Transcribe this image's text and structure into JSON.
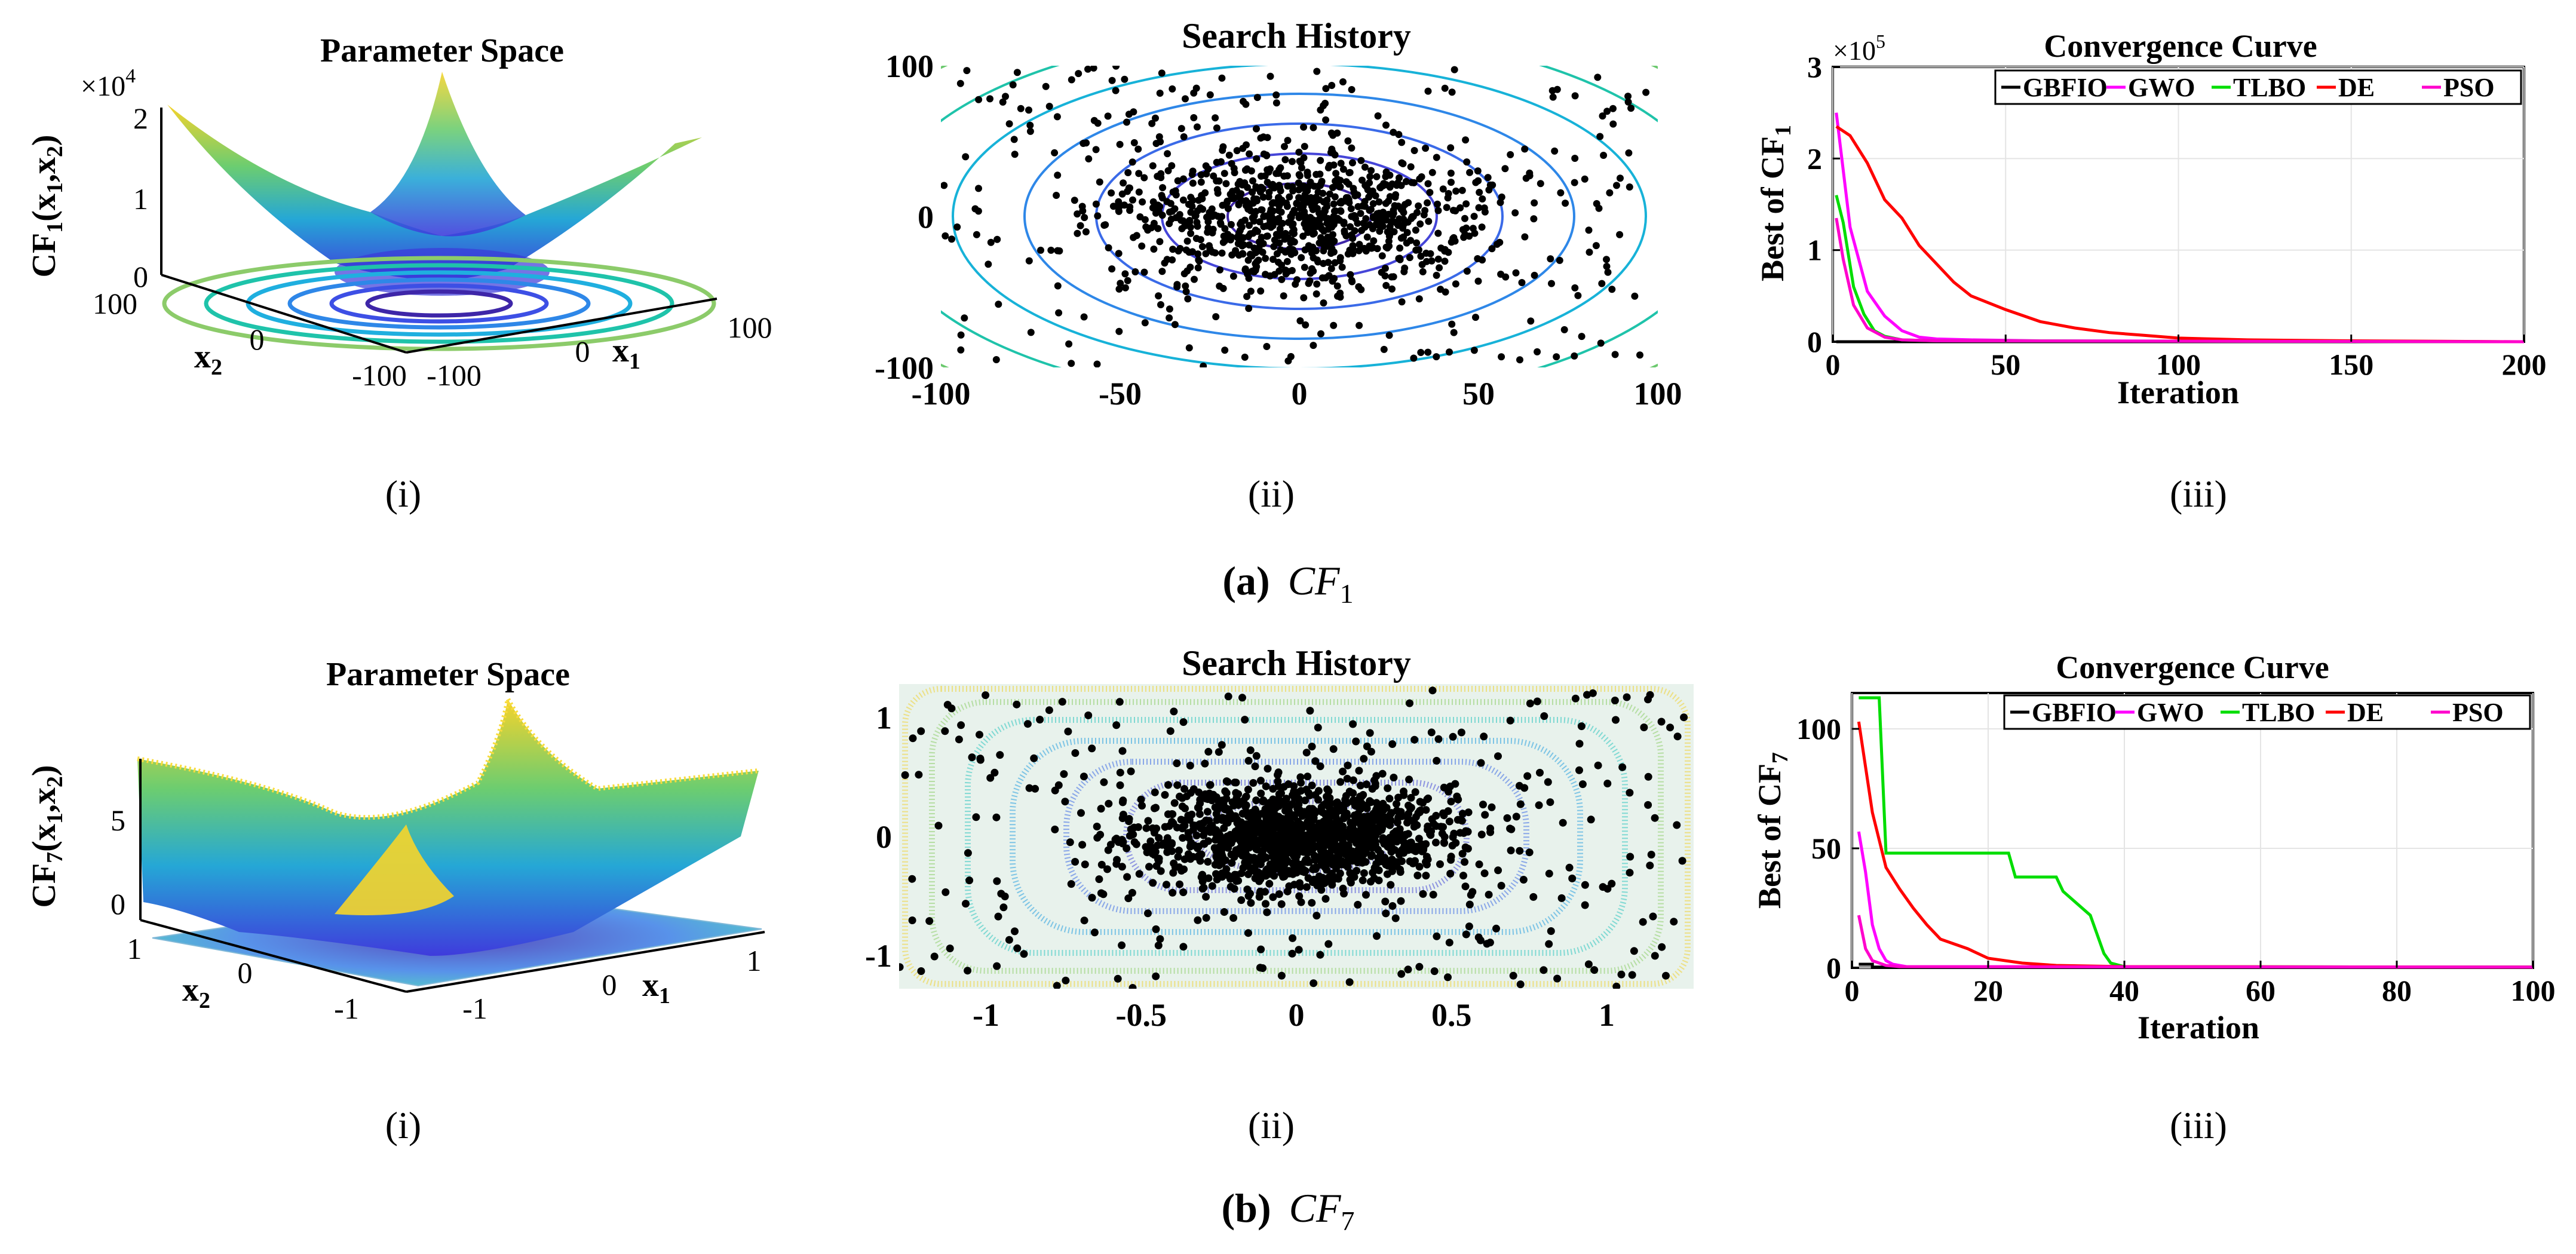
{
  "figure": {
    "row_a": {
      "letter": "(a)",
      "func": "CF",
      "sub": "1"
    },
    "row_b": {
      "letter": "(b)",
      "func": "CF",
      "sub": "7"
    },
    "panel_labels": [
      "(i)",
      "(ii)",
      "(iii)"
    ]
  },
  "colors": {
    "gbfio": "#000000",
    "gwo": "#ff00ff",
    "tlbo": "#00dd00",
    "de": "#ff0000",
    "pso": "#ff00cc",
    "dots": "#000000"
  },
  "chart_data": [
    {
      "id": "a-i",
      "type": "surface",
      "title": "Parameter Space",
      "zlabel": "CF1(x1,x2)",
      "zlabel_parts": {
        "main": "CF",
        "sub": "1",
        "args_pre": "(x",
        "sub_a": "1",
        "comma": ",x",
        "sub_b": "2",
        "close": ")"
      },
      "exponent": {
        "base": "×10",
        "power": "4"
      },
      "zticks": [
        "2",
        "1",
        "0"
      ],
      "x1_ticks": [
        "-100",
        "0",
        "100"
      ],
      "x2_ticks": [
        "100",
        "0",
        "-100"
      ],
      "xlabel_parts": {
        "main": "x",
        "sub": "1"
      },
      "ylabel_parts": {
        "main": "x",
        "sub": "2"
      }
    },
    {
      "id": "a-ii",
      "type": "scatter",
      "title": "Search History",
      "xlim": [
        -100,
        100
      ],
      "ylim": [
        -100,
        100
      ],
      "xticks": [
        "-100",
        "-50",
        "0",
        "50",
        "100"
      ],
      "yticks": [
        "100",
        "0",
        "-100"
      ]
    },
    {
      "id": "a-iii",
      "type": "line",
      "title": "Convergence Curve",
      "xlabel": "Iteration",
      "ylabel_parts": {
        "main": "Best of CF",
        "sub": "1"
      },
      "exponent": {
        "base": "×10",
        "power": "5"
      },
      "xlim": [
        0,
        200
      ],
      "ylim": [
        0,
        3
      ],
      "xticks": [
        "0",
        "50",
        "100",
        "150",
        "200"
      ],
      "yticks": [
        "0",
        "1",
        "2",
        "3"
      ],
      "legend": [
        "GBFIO",
        "GWO",
        "TLBO",
        "DE",
        "PSO"
      ],
      "series": [
        {
          "name": "GBFIO",
          "x": [
            1,
            200
          ],
          "y": [
            0.0,
            0.0
          ]
        },
        {
          "name": "GWO",
          "x": [
            1,
            5,
            10,
            15,
            20,
            25,
            30,
            40,
            60,
            200
          ],
          "y": [
            2.5,
            1.25,
            0.55,
            0.28,
            0.12,
            0.05,
            0.03,
            0.02,
            0.01,
            0.0
          ]
        },
        {
          "name": "TLBO",
          "x": [
            1,
            3,
            6,
            9,
            12,
            15,
            20,
            30,
            200
          ],
          "y": [
            1.6,
            1.3,
            0.6,
            0.3,
            0.12,
            0.06,
            0.02,
            0.01,
            0.0
          ]
        },
        {
          "name": "DE",
          "x": [
            1,
            5,
            10,
            15,
            20,
            25,
            30,
            35,
            40,
            50,
            60,
            70,
            80,
            90,
            100,
            120,
            150,
            200
          ],
          "y": [
            2.35,
            2.25,
            1.95,
            1.55,
            1.35,
            1.05,
            0.85,
            0.65,
            0.5,
            0.35,
            0.22,
            0.15,
            0.1,
            0.07,
            0.04,
            0.02,
            0.01,
            0.0
          ]
        },
        {
          "name": "PSO",
          "x": [
            1,
            3,
            6,
            10,
            15,
            20,
            30,
            200
          ],
          "y": [
            1.35,
            0.9,
            0.4,
            0.15,
            0.05,
            0.02,
            0.01,
            0.0
          ]
        }
      ]
    },
    {
      "id": "b-i",
      "type": "surface",
      "title": "Parameter Space",
      "zlabel": "CF7(x1,x2)",
      "zlabel_parts": {
        "main": "CF",
        "sub": "7",
        "args_pre": "(x",
        "sub_a": "1",
        "comma": ",x",
        "sub_b": "2",
        "close": ")"
      },
      "zticks": [
        "5",
        "0"
      ],
      "x1_ticks": [
        "-1",
        "0",
        "1"
      ],
      "x2_ticks": [
        "1",
        "0",
        "-1"
      ],
      "xlabel_parts": {
        "main": "x",
        "sub": "1"
      },
      "ylabel_parts": {
        "main": "x",
        "sub": "2"
      }
    },
    {
      "id": "b-ii",
      "type": "scatter",
      "title": "Search History",
      "xlim": [
        -1.28,
        1.28
      ],
      "ylim": [
        -1.28,
        1.28
      ],
      "xticks": [
        "-1",
        "-0.5",
        "0",
        "0.5",
        "1"
      ],
      "yticks": [
        "1",
        "0",
        "-1"
      ]
    },
    {
      "id": "b-iii",
      "type": "line",
      "title": "Convergence Curve",
      "xlabel": "Iteration",
      "ylabel_parts": {
        "main": "Best of CF",
        "sub": "7"
      },
      "xlim": [
        0,
        100
      ],
      "ylim": [
        0,
        115
      ],
      "xticks": [
        "0",
        "20",
        "40",
        "60",
        "80",
        "100"
      ],
      "yticks": [
        "0",
        "50",
        "100"
      ],
      "legend": [
        "GBFIO",
        "GWO",
        "TLBO",
        "DE",
        "PSO"
      ],
      "series": [
        {
          "name": "GBFIO",
          "x": [
            1,
            3,
            3,
            100
          ],
          "y": [
            1.5,
            1.5,
            0.3,
            0.3
          ]
        },
        {
          "name": "GWO",
          "x": [
            1,
            2,
            3,
            4,
            5,
            6,
            8,
            100
          ],
          "y": [
            57,
            40,
            18,
            8,
            3,
            1.5,
            0.5,
            0.3
          ]
        },
        {
          "name": "TLBO",
          "x": [
            1,
            4,
            5,
            23,
            24,
            30,
            31,
            35,
            37,
            38,
            40,
            100
          ],
          "y": [
            113,
            113,
            48,
            48,
            38,
            38,
            32,
            22,
            6,
            2,
            0.5,
            0.3
          ]
        },
        {
          "name": "DE",
          "x": [
            1,
            3,
            5,
            7,
            9,
            11,
            13,
            15,
            17,
            20,
            25,
            30,
            40,
            100
          ],
          "y": [
            103,
            65,
            42,
            33,
            25,
            18,
            12,
            10,
            8,
            4,
            2,
            1,
            0.5,
            0.3
          ]
        },
        {
          "name": "PSO",
          "x": [
            1,
            2,
            3,
            5,
            7,
            100
          ],
          "y": [
            22,
            8,
            3,
            1,
            0.5,
            0.3
          ]
        }
      ]
    }
  ]
}
